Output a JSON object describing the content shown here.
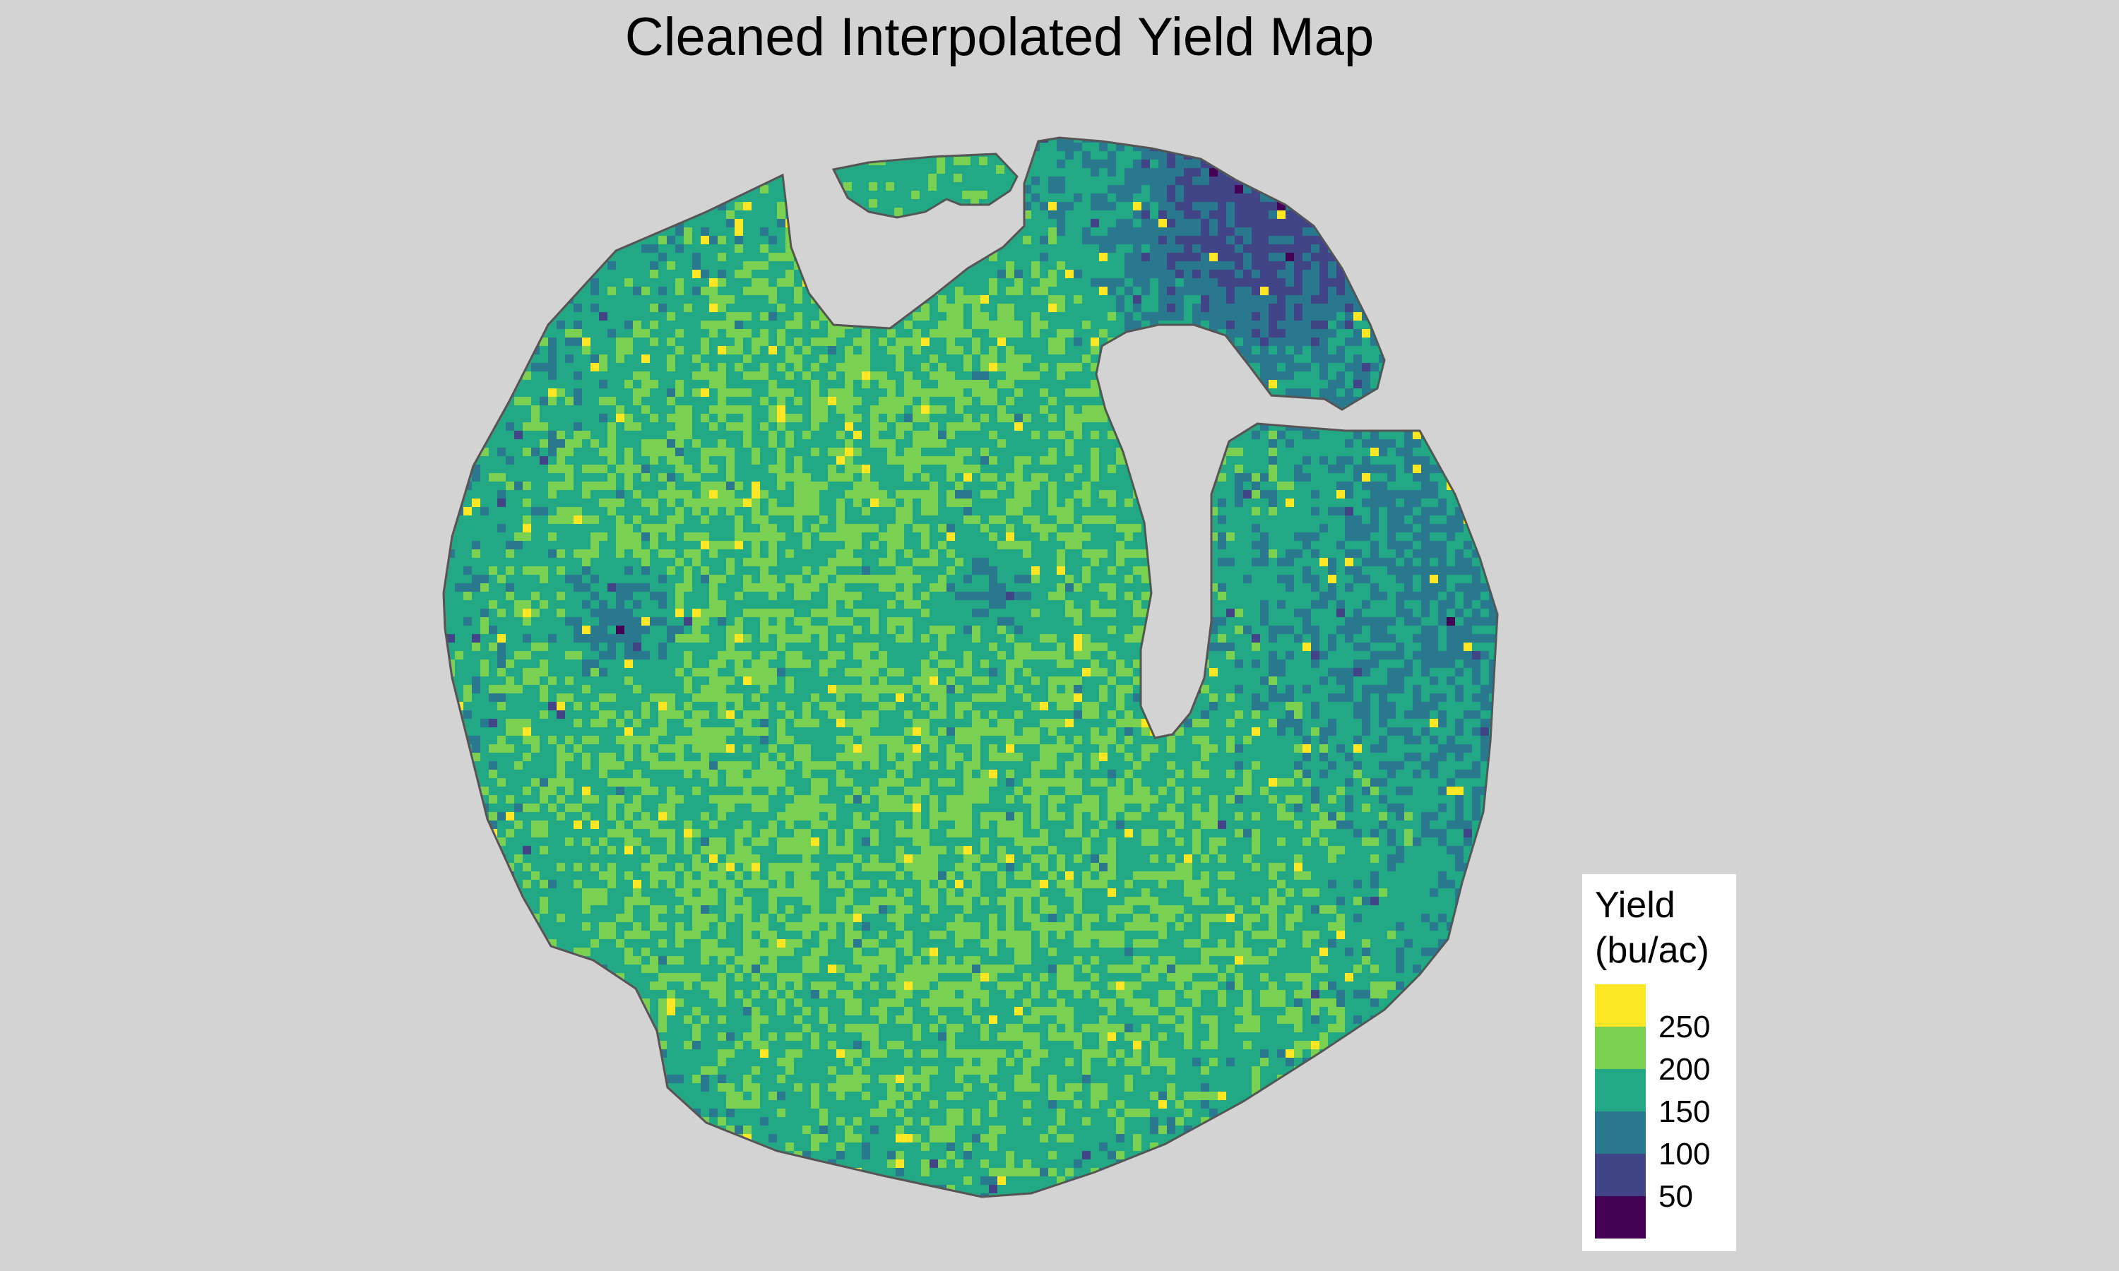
{
  "title": "Cleaned Interpolated Yield Map",
  "legend": {
    "title_line1": "Yield",
    "title_line2": "(bu/ac)",
    "bins": [
      {
        "color": "#fde725"
      },
      {
        "color": "#7ad151"
      },
      {
        "color": "#22a884"
      },
      {
        "color": "#2a788e"
      },
      {
        "color": "#414487"
      },
      {
        "color": "#440154"
      }
    ],
    "labels": [
      "250",
      "200",
      "150",
      "100",
      "50"
    ]
  },
  "map": {
    "background": "#d3d3d3",
    "boundary_color": "#555555",
    "colormap": "viridis",
    "value_range": [
      25,
      275
    ]
  }
}
